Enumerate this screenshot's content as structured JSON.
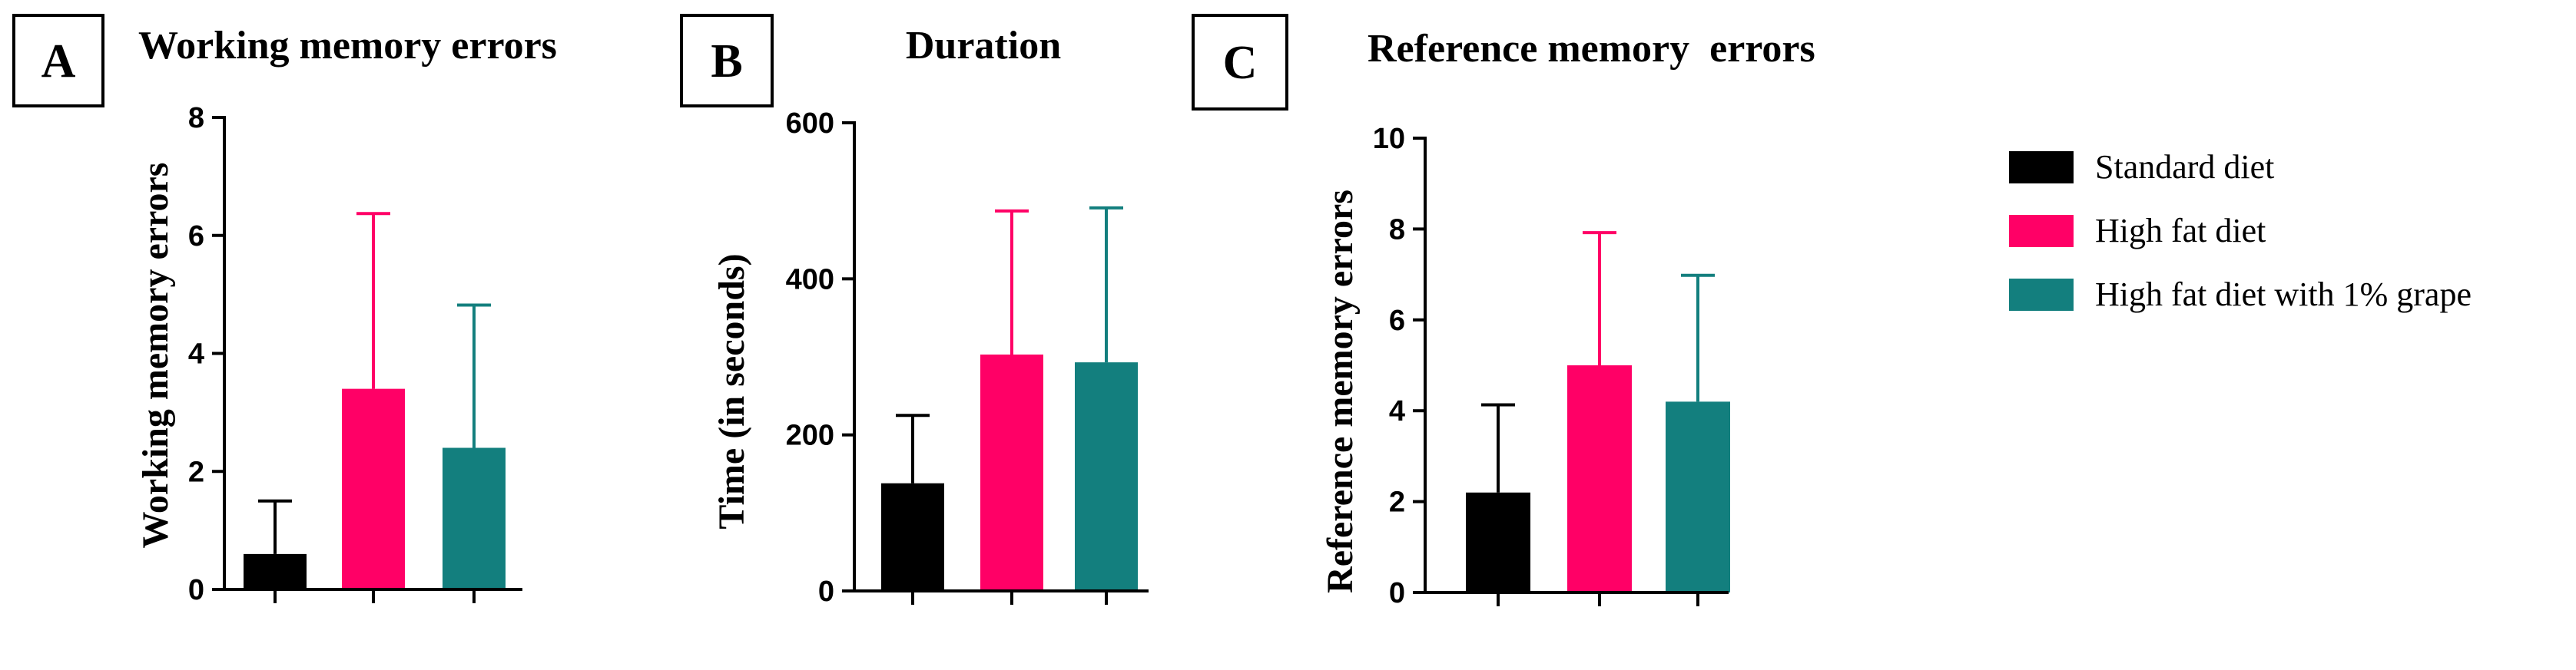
{
  "colors": {
    "standard": "#000000",
    "high_fat": "#ff0066",
    "grape": "#137f7e"
  },
  "legend": {
    "items": [
      {
        "label": "Standard diet",
        "color": "#000000"
      },
      {
        "label": "High fat diet",
        "color": "#ff0066"
      },
      {
        "label": "High fat diet with 1% grape",
        "color": "#137f7e"
      }
    ]
  },
  "chart_data": [
    {
      "type": "bar",
      "panel": "A",
      "title": "Working memory errors",
      "xlabel": "",
      "ylabel": "Working memory errors",
      "categories": [
        "Standard diet",
        "High fat diet",
        "High fat diet with 1% grape"
      ],
      "values": [
        0.6,
        3.4,
        2.4
      ],
      "errors": [
        0.9,
        2.97,
        2.42
      ],
      "ylim": [
        0,
        8
      ],
      "yticks": [
        0,
        2,
        4,
        6,
        8
      ],
      "ytick_labels": [
        "0",
        "2",
        "4",
        "6",
        "8"
      ]
    },
    {
      "type": "bar",
      "panel": "B",
      "title": "Duration",
      "xlabel": "",
      "ylabel": "Time (in seconds)",
      "categories": [
        "Standard diet",
        "High fat diet",
        "High fat diet with 1% grape"
      ],
      "values": [
        138,
        303,
        293
      ],
      "errors": [
        87,
        184,
        198
      ],
      "ylim": [
        0,
        600
      ],
      "yticks": [
        0,
        200,
        400,
        600
      ],
      "ytick_labels": [
        "0",
        "200",
        "400",
        "600"
      ]
    },
    {
      "type": "bar",
      "panel": "C",
      "title": "Reference memory  errors",
      "xlabel": "",
      "ylabel": "Reference memory errors",
      "categories": [
        "Standard diet",
        "High fat diet",
        "High fat diet with 1% grape"
      ],
      "values": [
        2.2,
        5.0,
        4.2
      ],
      "errors": [
        1.93,
        2.92,
        2.78
      ],
      "ylim": [
        0,
        10
      ],
      "yticks": [
        0,
        2,
        4,
        6,
        8,
        10
      ],
      "ytick_labels": [
        "0",
        "2",
        "4",
        "6",
        "8",
        "10"
      ]
    }
  ]
}
